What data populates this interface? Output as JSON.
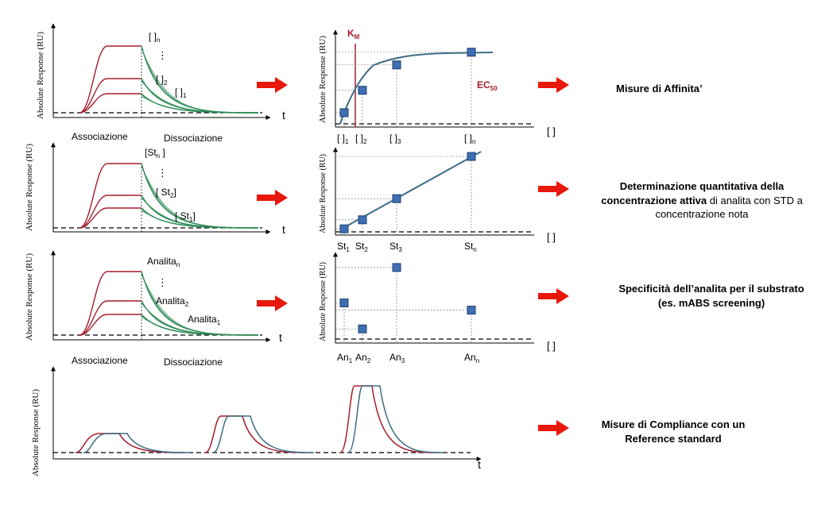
{
  "colors": {
    "red": "#a51d2d",
    "green": "#2e8b57",
    "teal": "#3e6d85",
    "marker": "#3f6fb3",
    "arrow": "#e8180c"
  },
  "axis_label": "Absolute Response (RU)",
  "phases": {
    "assoc": "Associazione",
    "dissoc": "Dissociazione"
  },
  "axis_t": "t",
  "axis_conc": "[ ]",
  "row1": {
    "sensorgram_labels": {
      "top": "[ ]",
      "top_sub": "n",
      "mid": "[ ]",
      "mid_sub": "2",
      "bot": "[ ]",
      "bot_sub": "1"
    },
    "km_label": "K",
    "km_sub": "M",
    "ec_label": "EC",
    "ec_sub": "50",
    "x_ticks": [
      {
        "t": "[ ]",
        "s": "1"
      },
      {
        "t": "[ ]",
        "s": "2"
      },
      {
        "t": "[ ]",
        "s": "3"
      },
      {
        "t": "[ ]",
        "s": "n"
      }
    ],
    "points": [
      0.15,
      0.45,
      0.79,
      0.96
    ],
    "description": "Misure di Affinita’"
  },
  "row2": {
    "sensorgram_labels": {
      "top": "[St",
      "top_sub": "n",
      "top_end": " ]",
      "mid": "[ St",
      "mid_sub": "2",
      "mid_end": "]",
      "bot": "[ St",
      "bot_sub": "1",
      "bot_end": "]"
    },
    "x_ticks": [
      {
        "t": "St",
        "s": "1"
      },
      {
        "t": "St",
        "s": "2"
      },
      {
        "t": "St",
        "s": "3"
      },
      {
        "t": "St",
        "s": "n"
      }
    ],
    "points": [
      0.04,
      0.16,
      0.44,
      1.0
    ],
    "description_bold": "Determinazione quantitativa della concentrazione attiva",
    "description_rest": " di analita con STD a concentrazione nota"
  },
  "row3": {
    "sensorgram_labels": {
      "top": "Analita",
      "top_sub": "n",
      "mid": "Analita",
      "mid_sub": "2",
      "bot": "Analita",
      "bot_sub": "1"
    },
    "x_ticks": [
      {
        "t": "An",
        "s": "1"
      },
      {
        "t": "An",
        "s": "2"
      },
      {
        "t": "An",
        "s": "3"
      },
      {
        "t": "An",
        "s": "n"
      }
    ],
    "points": [
      0.5,
      0.14,
      0.99,
      0.4
    ],
    "description": "Specificità dell’analita per il substrato (es. mABS screening)"
  },
  "row4": {
    "description": "Misure di Compliance con un Reference standard"
  }
}
